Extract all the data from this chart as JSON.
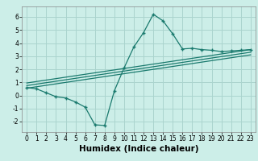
{
  "main_x": [
    0,
    1,
    2,
    3,
    4,
    5,
    6,
    7,
    8,
    9,
    10,
    11,
    12,
    13,
    14,
    15,
    16,
    17,
    18,
    19,
    20,
    21,
    22,
    23
  ],
  "main_y": [
    0.6,
    0.5,
    0.2,
    -0.1,
    -0.2,
    -0.5,
    -0.9,
    -2.25,
    -2.3,
    0.35,
    2.1,
    3.7,
    4.8,
    6.2,
    5.7,
    4.7,
    3.55,
    3.6,
    3.5,
    3.45,
    3.35,
    3.4,
    3.45,
    3.5
  ],
  "line1_x": [
    0,
    23
  ],
  "line1_y": [
    0.55,
    3.1
  ],
  "line2_x": [
    0,
    23
  ],
  "line2_y": [
    0.75,
    3.3
  ],
  "line3_x": [
    0,
    23
  ],
  "line3_y": [
    0.95,
    3.5
  ],
  "line_color": "#1a7a6e",
  "bg_color": "#cceee8",
  "grid_color": "#aad4ce",
  "xlabel": "Humidex (Indice chaleur)",
  "xlim": [
    -0.5,
    23.5
  ],
  "ylim": [
    -2.8,
    6.8
  ],
  "xticks": [
    0,
    1,
    2,
    3,
    4,
    5,
    6,
    7,
    8,
    9,
    10,
    11,
    12,
    13,
    14,
    15,
    16,
    17,
    18,
    19,
    20,
    21,
    22,
    23
  ],
  "yticks": [
    -2,
    -1,
    0,
    1,
    2,
    3,
    4,
    5,
    6
  ],
  "tick_fontsize": 5.5,
  "xlabel_fontsize": 7.5
}
